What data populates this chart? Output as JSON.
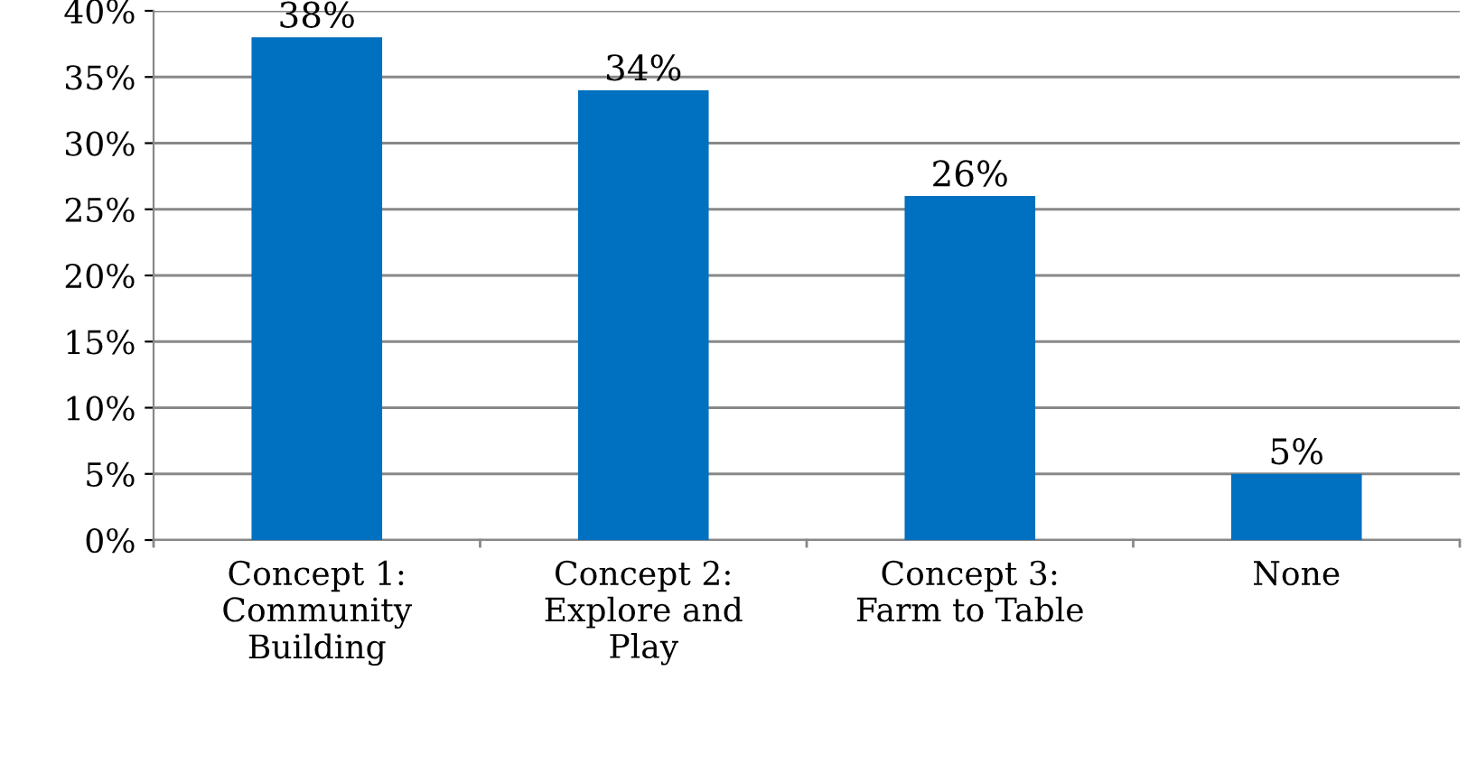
{
  "chart_data": {
    "type": "bar",
    "categories": [
      "Concept 1:\nCommunity\nBuilding",
      "Concept 2:\nExplore and\nPlay",
      "Concept 3:\nFarm to Table",
      "None"
    ],
    "values": [
      38,
      34,
      26,
      5
    ],
    "value_labels": [
      "38%",
      "34%",
      "26%",
      "5%"
    ],
    "color": "#0070c0",
    "ylim": [
      0,
      40
    ],
    "yticks": [
      {
        "value": 0,
        "label": "0%"
      },
      {
        "value": 5,
        "label": "5%"
      },
      {
        "value": 10,
        "label": "10%"
      },
      {
        "value": 15,
        "label": "15%"
      },
      {
        "value": 20,
        "label": "20%"
      },
      {
        "value": 25,
        "label": "25%"
      },
      {
        "value": 30,
        "label": "30%"
      },
      {
        "value": 35,
        "label": "35%"
      },
      {
        "value": 40,
        "label": "40%"
      }
    ],
    "grid": "y",
    "legend": false
  }
}
